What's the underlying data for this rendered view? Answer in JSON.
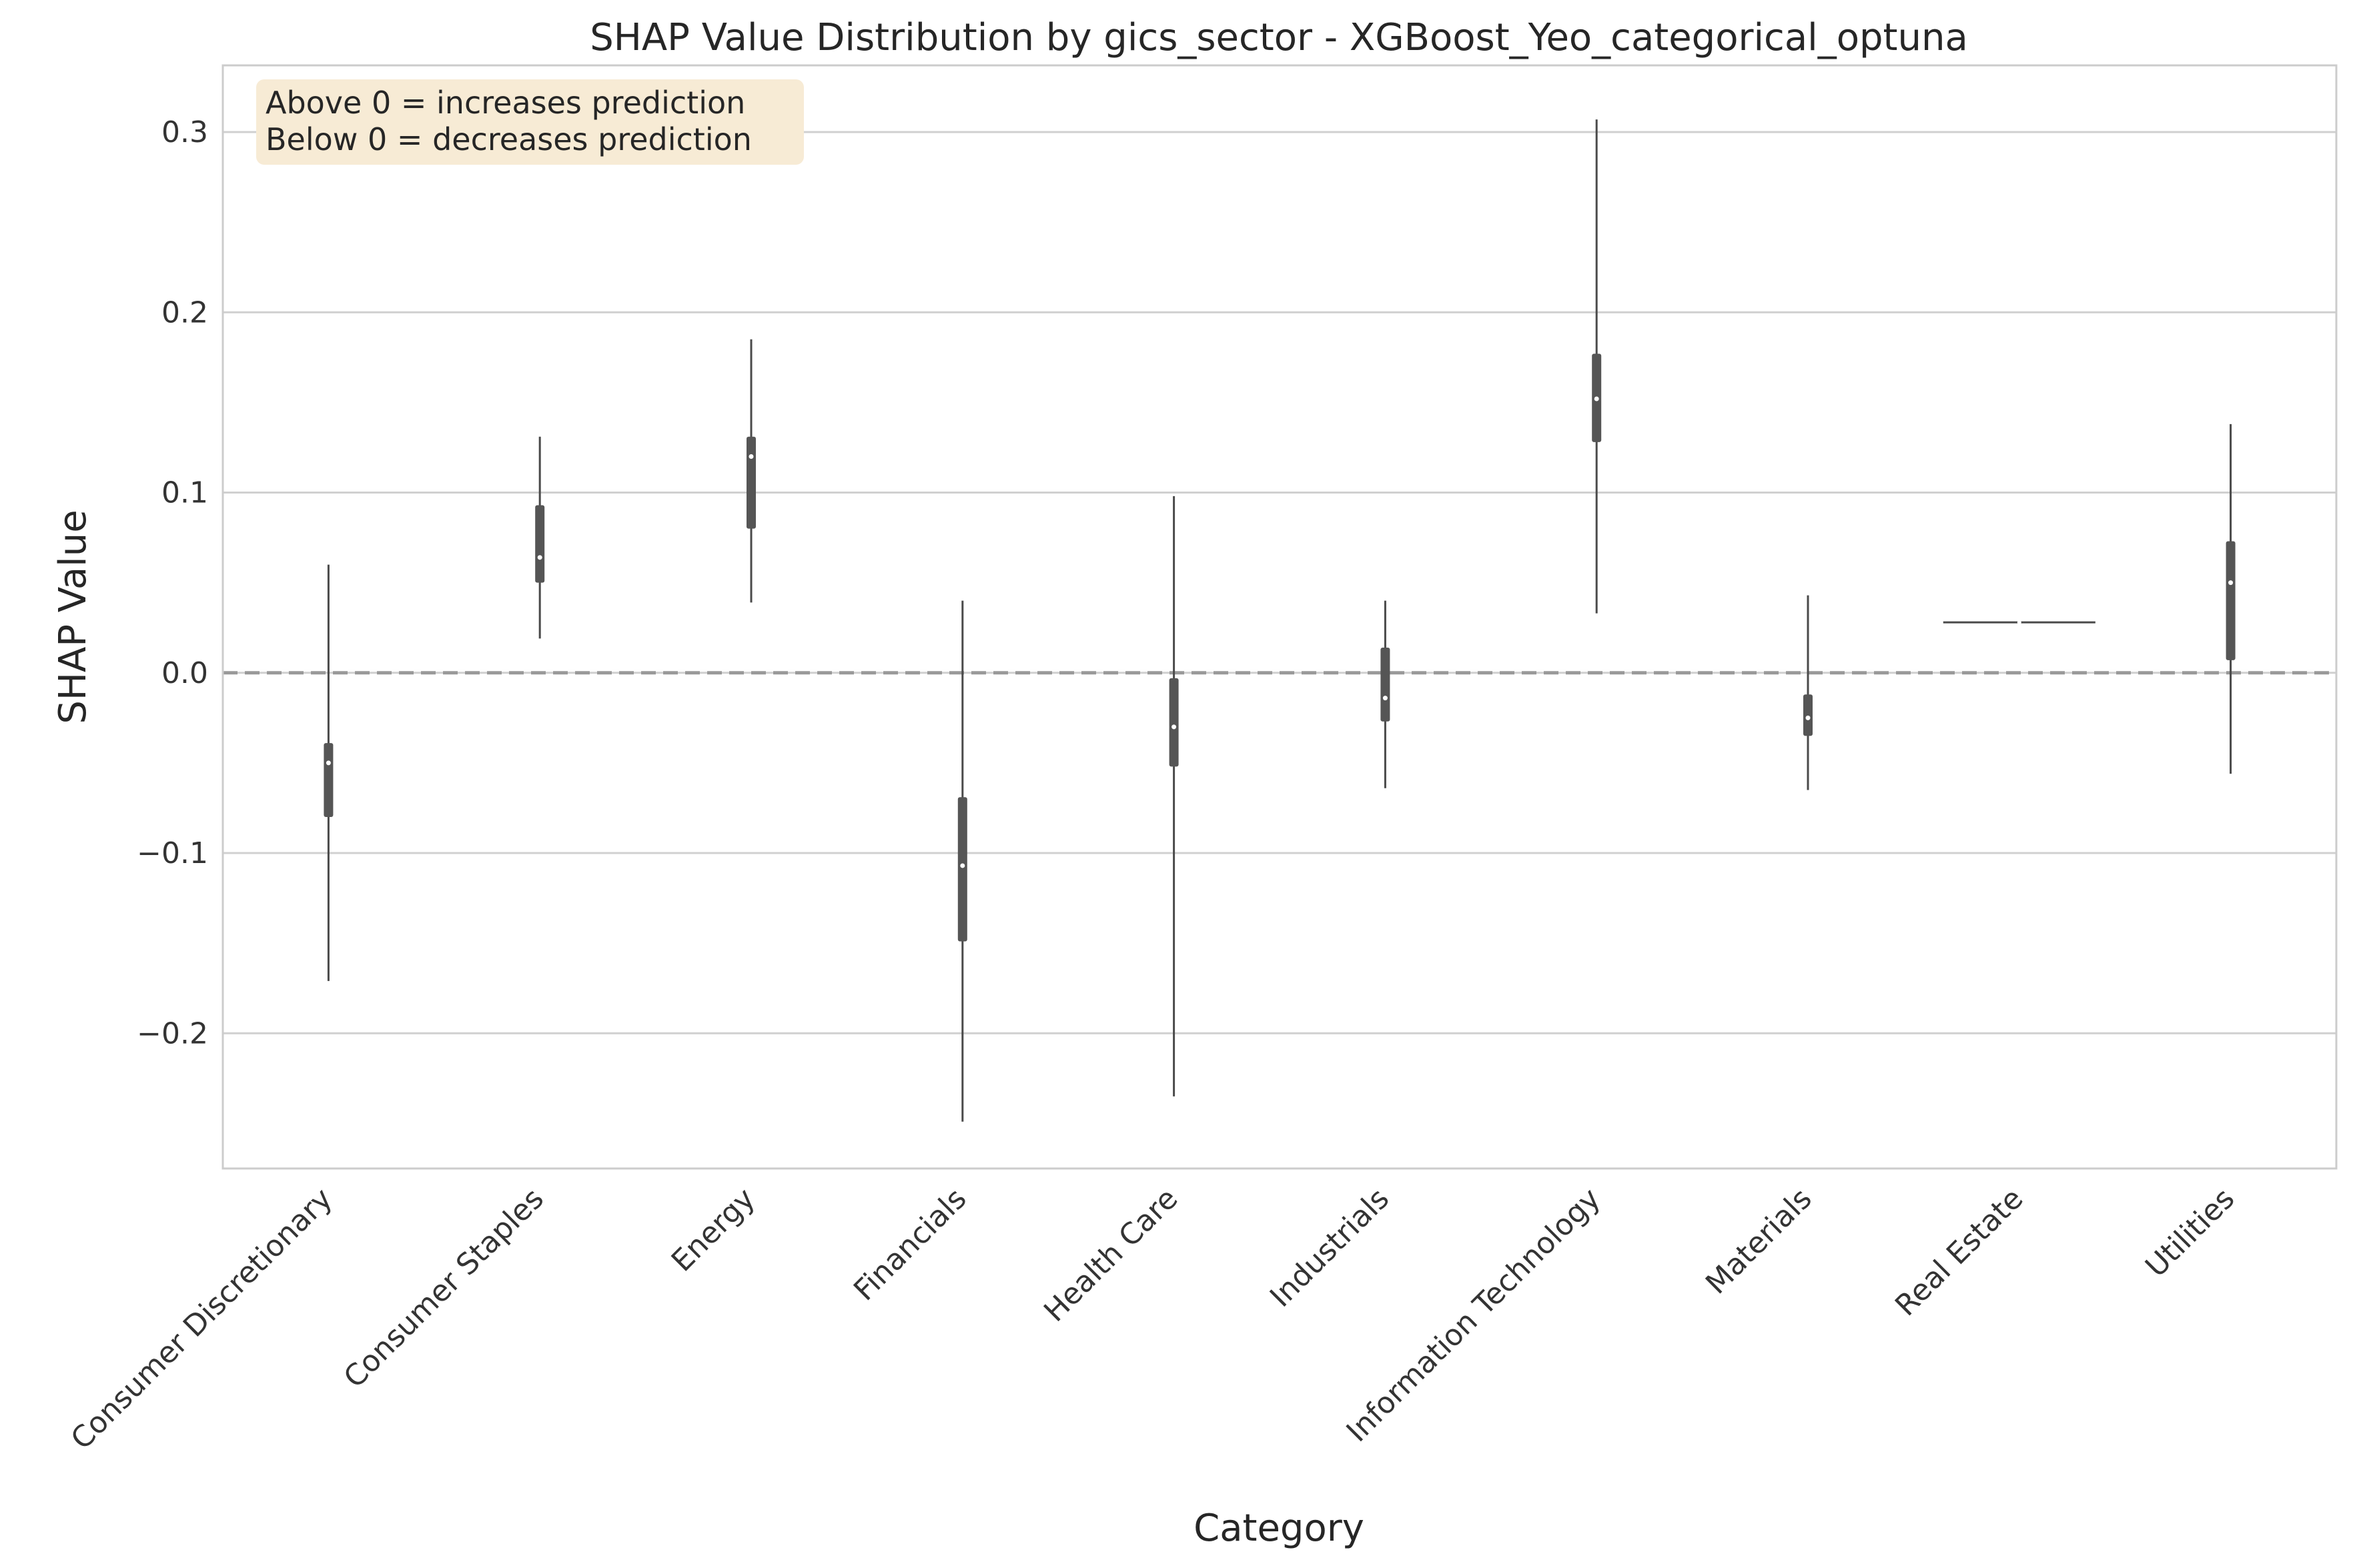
{
  "chart_data": {
    "type": "violin",
    "title": "SHAP Value Distribution by gics_sector - XGBoost_Yeo_categorical_optuna",
    "xlabel": "Category",
    "ylabel": "SHAP Value",
    "ylim": [
      -0.275,
      0.337
    ],
    "yticks": [
      -0.2,
      -0.1,
      0.0,
      0.1,
      0.2,
      0.3
    ],
    "ytick_labels": [
      "−0.2",
      "−0.1",
      "0.0",
      "0.1",
      "0.2",
      "0.3"
    ],
    "grid": "horizontal",
    "reference_line": 0.0,
    "annotation": [
      "Above 0 = increases prediction",
      "Below 0 = decreases prediction"
    ],
    "categories": [
      "Consumer Discretionary",
      "Consumer Staples",
      "Energy",
      "Financials",
      "Health Care",
      "Industrials",
      "Information Technology",
      "Materials",
      "Real Estate",
      "Utilities"
    ],
    "series": [
      {
        "category": "Consumer Discretionary",
        "min": -0.171,
        "q1": -0.08,
        "median": -0.05,
        "q3": -0.039,
        "max": 0.06
      },
      {
        "category": "Consumer Staples",
        "min": 0.019,
        "q1": 0.05,
        "median": 0.064,
        "q3": 0.093,
        "max": 0.131
      },
      {
        "category": "Energy",
        "min": 0.039,
        "q1": 0.08,
        "median": 0.12,
        "q3": 0.131,
        "max": 0.185
      },
      {
        "category": "Financials",
        "min": -0.249,
        "q1": -0.149,
        "median": -0.107,
        "q3": -0.069,
        "max": 0.04
      },
      {
        "category": "Health Care",
        "min": -0.235,
        "q1": -0.052,
        "median": -0.03,
        "q3": -0.003,
        "max": 0.098
      },
      {
        "category": "Industrials",
        "min": -0.064,
        "q1": -0.027,
        "median": -0.014,
        "q3": 0.014,
        "max": 0.04
      },
      {
        "category": "Information Technology",
        "min": 0.033,
        "q1": 0.128,
        "median": 0.152,
        "q3": 0.177,
        "max": 0.307
      },
      {
        "category": "Materials",
        "min": -0.065,
        "q1": -0.035,
        "median": -0.025,
        "q3": -0.012,
        "max": 0.043
      },
      {
        "category": "Real Estate",
        "min": 0.028,
        "q1": 0.028,
        "median": 0.028,
        "q3": 0.028,
        "max": 0.028
      },
      {
        "category": "Utilities",
        "min": -0.056,
        "q1": 0.007,
        "median": 0.05,
        "q3": 0.073,
        "max": 0.138
      }
    ],
    "colors": {
      "grid": "#d0d0d0",
      "frame": "#cccccc",
      "reference": "#999999",
      "whisker": "#4a4a4a",
      "box": "#555555",
      "median": "#ffffff",
      "annotation_bg": "#f7ebd5"
    }
  }
}
